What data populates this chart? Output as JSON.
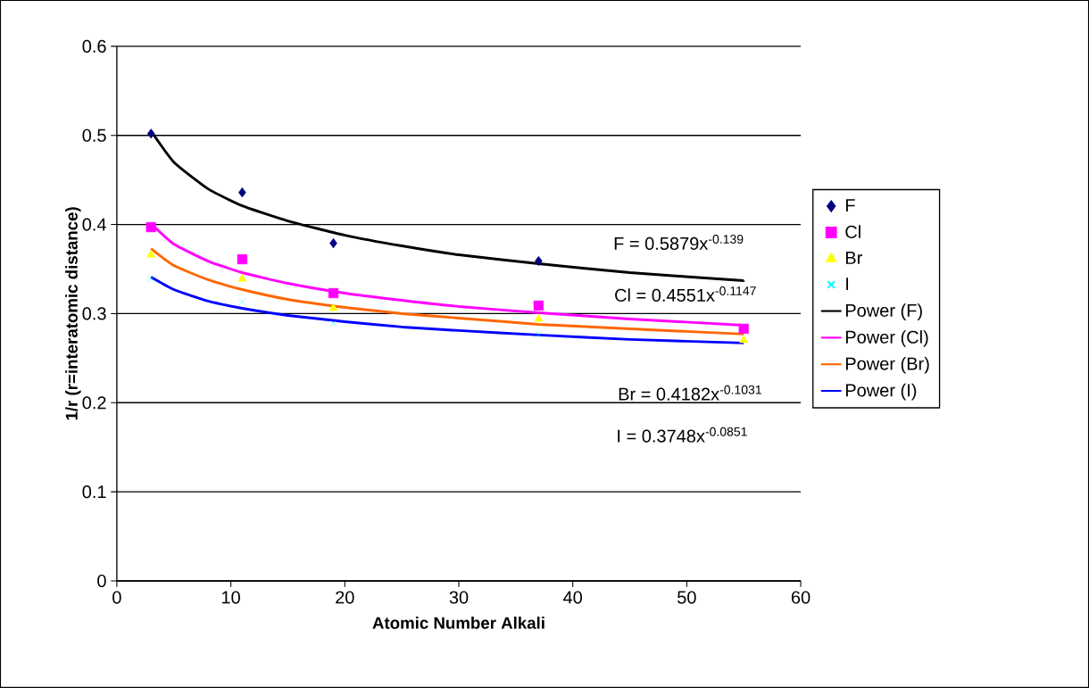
{
  "chart_data": {
    "type": "scatter",
    "xlabel": "Atomic Number Alkali",
    "ylabel": "1/r (r=interatomic distance)",
    "x": [
      3,
      11,
      19,
      37,
      55
    ],
    "series": [
      {
        "name": "F",
        "color": "#000080",
        "marker": "diamond",
        "values": [
          0.502,
          0.436,
          0.379,
          0.359,
          null
        ]
      },
      {
        "name": "Cl",
        "color": "#ff00ff",
        "marker": "square",
        "values": [
          0.397,
          0.361,
          0.323,
          0.309,
          0.283
        ]
      },
      {
        "name": "Br",
        "color": "#ffff00",
        "marker": "triangle",
        "values": [
          0.366,
          0.339,
          0.306,
          0.294,
          0.27
        ]
      },
      {
        "name": "I",
        "color": "#00ffff",
        "marker": "cross",
        "values": [
          0.339,
          0.313,
          0.289,
          0.277,
          null
        ]
      },
      {
        "name": "Power (F)",
        "type": "line",
        "color": "#000000",
        "marker": "none",
        "x": [
          3,
          5,
          8,
          11,
          15,
          20,
          25,
          30,
          37,
          45,
          55
        ],
        "values": [
          0.505,
          0.47,
          0.44,
          0.421,
          0.404,
          0.388,
          0.376,
          0.366,
          0.356,
          0.346,
          0.337
        ]
      },
      {
        "name": "Power (Cl)",
        "type": "line",
        "color": "#ff00ff",
        "marker": "none",
        "x": [
          3,
          5,
          8,
          11,
          15,
          20,
          25,
          30,
          37,
          45,
          55
        ],
        "values": [
          0.401,
          0.378,
          0.359,
          0.346,
          0.334,
          0.323,
          0.315,
          0.308,
          0.301,
          0.294,
          0.287
        ]
      },
      {
        "name": "Power (Br)",
        "type": "line",
        "color": "#ff6600",
        "marker": "none",
        "x": [
          3,
          5,
          8,
          11,
          15,
          20,
          25,
          30,
          37,
          45,
          55
        ],
        "values": [
          0.373,
          0.354,
          0.338,
          0.327,
          0.316,
          0.307,
          0.3,
          0.295,
          0.288,
          0.283,
          0.277
        ]
      },
      {
        "name": "Power (I)",
        "type": "line",
        "color": "#0000ff",
        "marker": "none",
        "x": [
          3,
          5,
          8,
          11,
          15,
          20,
          25,
          30,
          37,
          45,
          55
        ],
        "values": [
          0.341,
          0.327,
          0.314,
          0.306,
          0.298,
          0.291,
          0.285,
          0.281,
          0.276,
          0.271,
          0.267
        ]
      }
    ],
    "annotations": [
      "F = 0.5879x$^{-0.139}$",
      "Cl = 0.4551x$^{-0.1147}$",
      "Br = 0.4182x$^{-0.1031}$",
      "I = 0.3748x$^{-0.0851}$"
    ],
    "xlim": [
      0,
      60
    ],
    "ylim": [
      0,
      0.6
    ],
    "xticks": [
      0,
      10,
      20,
      30,
      40,
      50,
      60
    ],
    "yticks": [
      0,
      0.1,
      0.2,
      0.3,
      0.4,
      0.5,
      0.6
    ],
    "grid": "y",
    "legend": "right"
  }
}
